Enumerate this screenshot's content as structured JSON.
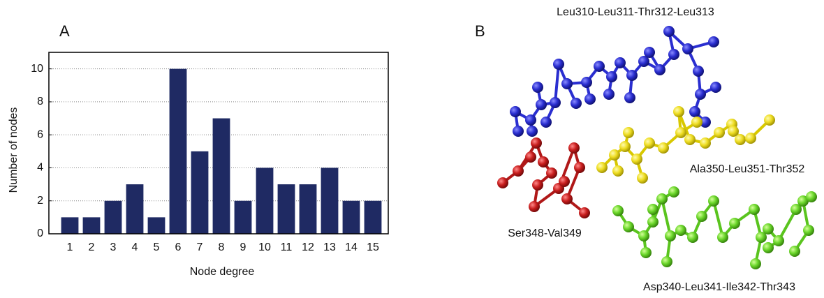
{
  "chart_data": {
    "type": "bar",
    "panel_label": "A",
    "x_label": "Node degree",
    "y_label": "Number of nodes",
    "categories": [
      "1",
      "2",
      "3",
      "4",
      "5",
      "6",
      "7",
      "8",
      "9",
      "10",
      "11",
      "12",
      "13",
      "14",
      "15"
    ],
    "values": [
      1,
      1,
      2,
      3,
      1,
      10,
      5,
      7,
      2,
      4,
      3,
      3,
      4,
      2,
      2
    ],
    "color": "#1f2a63",
    "ylim": [
      0,
      11
    ],
    "yticks": [
      0,
      2,
      4,
      6,
      8,
      10
    ],
    "grid": true
  },
  "panel_b": {
    "label": "B",
    "fragments": [
      "Leu310-Leu311-Thr312-Leu313",
      "Ala350-Leu351-Thr352",
      "Ser348-Val349",
      "Asp340-Leu341-Ile342-Thr343"
    ]
  }
}
